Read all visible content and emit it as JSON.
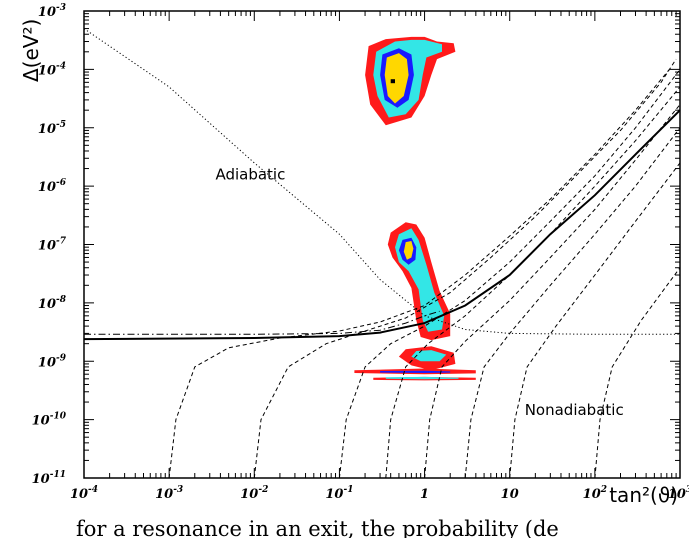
{
  "chart_data": {
    "type": "line",
    "xlabel": "tan²(ϑ)",
    "ylabel": "Δ(eV²)",
    "xscale": "log",
    "yscale": "log",
    "xlim": [
      0.0001,
      1000
    ],
    "ylim": [
      1e-11,
      0.001
    ],
    "xticks": [
      {
        "value": 0.0001,
        "base": "10",
        "exp": "-4"
      },
      {
        "value": 0.001,
        "base": "10",
        "exp": "-3"
      },
      {
        "value": 0.01,
        "base": "10",
        "exp": "-2"
      },
      {
        "value": 0.1,
        "base": "10",
        "exp": "-1"
      },
      {
        "value": 1,
        "base": "1",
        "exp": ""
      },
      {
        "value": 10,
        "base": "10",
        "exp": ""
      },
      {
        "value": 100,
        "base": "10",
        "exp": "2"
      },
      {
        "value": 1000,
        "base": "10",
        "exp": "3"
      }
    ],
    "yticks": [
      {
        "value": 1e-11,
        "base": "10",
        "exp": "-11"
      },
      {
        "value": 1e-10,
        "base": "10",
        "exp": "-10"
      },
      {
        "value": 1e-09,
        "base": "10",
        "exp": "-9"
      },
      {
        "value": 1e-08,
        "base": "10",
        "exp": "-8"
      },
      {
        "value": 1e-07,
        "base": "10",
        "exp": "-7"
      },
      {
        "value": 1e-06,
        "base": "10",
        "exp": "-6"
      },
      {
        "value": 1e-05,
        "base": "10",
        "exp": "-5"
      },
      {
        "value": 0.0001,
        "base": "10",
        "exp": "-4"
      },
      {
        "value": 0.001,
        "base": "10",
        "exp": "-3"
      }
    ],
    "annotations": [
      {
        "text": "Adiabatic",
        "x": 0.0035,
        "y": 1.3e-06
      },
      {
        "text": "Nonadiabatic",
        "x": 15,
        "y": 1.2e-10
      }
    ],
    "series": [
      {
        "style": "solid",
        "points": [
          [
            0.0001,
            2.4e-09
          ],
          [
            0.01,
            2.5e-09
          ],
          [
            0.1,
            2.7e-09
          ],
          [
            0.3,
            3.1e-09
          ],
          [
            1,
            4.5e-09
          ],
          [
            3,
            9e-09
          ],
          [
            10,
            3e-08
          ],
          [
            30,
            1.5e-07
          ],
          [
            100,
            7e-07
          ],
          [
            300,
            3.5e-06
          ],
          [
            1000,
            2e-05
          ]
        ]
      },
      {
        "style": "dash-dot",
        "points": [
          [
            0.0001,
            2.9e-09
          ],
          [
            0.01,
            2.9e-09
          ],
          [
            0.1,
            3e-09
          ],
          [
            0.3,
            3.4e-09
          ],
          [
            0.6,
            4.5e-09
          ],
          [
            1,
            6e-09
          ],
          [
            1.5,
            7.2e-09
          ]
        ]
      },
      {
        "style": "dotted",
        "points": [
          [
            0.0001,
            0.0005
          ],
          [
            0.001,
            5e-05
          ],
          [
            0.01,
            2.5e-06
          ],
          [
            0.1,
            1.5e-07
          ],
          [
            0.3,
            2.5e-08
          ],
          [
            1,
            6e-09
          ],
          [
            3,
            3.5e-09
          ],
          [
            10,
            3e-09
          ],
          [
            100,
            2.9e-09
          ],
          [
            1000,
            2.9e-09
          ]
        ]
      },
      {
        "style": "dashed",
        "points": [
          [
            0.001,
            1e-11
          ],
          [
            0.0012,
            1e-10
          ],
          [
            0.002,
            8e-10
          ],
          [
            0.005,
            1.7e-09
          ],
          [
            0.02,
            2.5e-09
          ],
          [
            0.1,
            3.3e-09
          ],
          [
            0.3,
            4.7e-09
          ],
          [
            1,
            9e-09
          ],
          [
            3,
            3e-08
          ],
          [
            10,
            1.4e-07
          ],
          [
            30,
            6e-07
          ],
          [
            100,
            3.5e-06
          ],
          [
            300,
            2e-05
          ],
          [
            750,
            0.0001
          ]
        ]
      },
      {
        "style": "dashed",
        "points": [
          [
            0.01,
            1e-11
          ],
          [
            0.012,
            1e-10
          ],
          [
            0.025,
            8e-10
          ],
          [
            0.07,
            2e-09
          ],
          [
            0.2,
            3.3e-09
          ],
          [
            0.6,
            5.5e-09
          ],
          [
            2,
            1.5e-08
          ],
          [
            6,
            6e-08
          ],
          [
            20,
            3e-07
          ],
          [
            60,
            1.5e-06
          ],
          [
            200,
            9e-06
          ],
          [
            600,
            6e-05
          ],
          [
            900,
            0.00015
          ]
        ]
      },
      {
        "style": "dashed",
        "points": [
          [
            0.1,
            1e-11
          ],
          [
            0.12,
            1e-10
          ],
          [
            0.2,
            8e-10
          ],
          [
            0.4,
            2e-09
          ],
          [
            1,
            4e-09
          ],
          [
            3,
            1.1e-08
          ],
          [
            10,
            5e-08
          ],
          [
            30,
            2.5e-07
          ],
          [
            100,
            1.5e-06
          ],
          [
            300,
            1e-05
          ],
          [
            1000,
            0.0001
          ]
        ]
      },
      {
        "style": "dashed",
        "points": [
          [
            0.35,
            1e-11
          ],
          [
            0.4,
            1e-10
          ],
          [
            0.6,
            8e-10
          ],
          [
            1.1,
            2e-09
          ],
          [
            3,
            6e-09
          ],
          [
            10,
            3e-08
          ],
          [
            30,
            1.5e-07
          ],
          [
            100,
            1e-06
          ],
          [
            300,
            6e-06
          ],
          [
            1000,
            5e-05
          ]
        ]
      },
      {
        "style": "dashed",
        "points": [
          [
            1,
            1e-11
          ],
          [
            1.15,
            1e-10
          ],
          [
            1.6,
            8e-10
          ],
          [
            3,
            2.2e-09
          ],
          [
            10,
            1.1e-08
          ],
          [
            30,
            6e-08
          ],
          [
            100,
            4e-07
          ],
          [
            300,
            2.8e-06
          ],
          [
            1000,
            2.5e-05
          ]
        ]
      },
      {
        "style": "dashed",
        "points": [
          [
            3,
            1e-11
          ],
          [
            3.5,
            1e-10
          ],
          [
            5,
            8e-10
          ],
          [
            10,
            3e-09
          ],
          [
            30,
            2e-08
          ],
          [
            100,
            1.5e-07
          ],
          [
            300,
            1e-06
          ],
          [
            1000,
            1e-05
          ]
        ]
      },
      {
        "style": "dashed",
        "points": [
          [
            10,
            1e-11
          ],
          [
            11.5,
            1e-10
          ],
          [
            16,
            8e-10
          ],
          [
            35,
            4e-09
          ],
          [
            100,
            3e-08
          ],
          [
            300,
            2.5e-07
          ],
          [
            1000,
            2.5e-06
          ]
        ]
      },
      {
        "style": "dashed",
        "points": [
          [
            100,
            1e-11
          ],
          [
            115,
            1e-10
          ],
          [
            160,
            8e-10
          ],
          [
            350,
            5e-09
          ],
          [
            1000,
            4e-08
          ]
        ]
      }
    ],
    "regions": [
      {
        "color": "#ff1a1a",
        "points": [
          [
            0.22,
            0.00025
          ],
          [
            0.35,
            0.00033
          ],
          [
            0.7,
            0.00036
          ],
          [
            1,
            0.00036
          ],
          [
            1.4,
            0.0003
          ],
          [
            2.2,
            0.00028
          ],
          [
            2.3,
            0.0002
          ],
          [
            1.4,
            0.00015
          ],
          [
            1.2,
            8e-05
          ],
          [
            1,
            3.5e-05
          ],
          [
            0.7,
            1.5e-05
          ],
          [
            0.35,
            1.1e-05
          ],
          [
            0.23,
            2.5e-05
          ],
          [
            0.2,
            8e-05
          ]
        ]
      },
      {
        "color": "#33e6e6",
        "points": [
          [
            0.27,
            0.0002
          ],
          [
            0.45,
            0.0003
          ],
          [
            0.7,
            0.00032
          ],
          [
            1,
            0.00032
          ],
          [
            1.6,
            0.00027
          ],
          [
            1.6,
            0.0002
          ],
          [
            1.05,
            0.00016
          ],
          [
            0.95,
            8e-05
          ],
          [
            0.85,
            3e-05
          ],
          [
            0.6,
            1.7e-05
          ],
          [
            0.38,
            1.5e-05
          ],
          [
            0.28,
            3.5e-05
          ],
          [
            0.25,
            8e-05
          ]
        ]
      },
      {
        "color": "#1a1aff",
        "points": [
          [
            0.32,
            0.00018
          ],
          [
            0.5,
            0.00023
          ],
          [
            0.7,
            0.00018
          ],
          [
            0.75,
            8e-05
          ],
          [
            0.65,
            3e-05
          ],
          [
            0.48,
            2.2e-05
          ],
          [
            0.34,
            3e-05
          ],
          [
            0.3,
            8e-05
          ]
        ]
      },
      {
        "color": "#ffd700",
        "points": [
          [
            0.36,
            0.00016
          ],
          [
            0.5,
            0.00019
          ],
          [
            0.62,
            0.00015
          ],
          [
            0.65,
            8e-05
          ],
          [
            0.57,
            3.5e-05
          ],
          [
            0.45,
            2.6e-05
          ],
          [
            0.37,
            3.5e-05
          ],
          [
            0.34,
            8e-05
          ]
        ]
      },
      {
        "color": "#000000",
        "points": [
          [
            0.4,
            6.8e-05
          ],
          [
            0.45,
            6.8e-05
          ],
          [
            0.45,
            5.8e-05
          ],
          [
            0.4,
            5.8e-05
          ]
        ]
      },
      {
        "color": "#ff1a1a",
        "points": [
          [
            0.4,
            1.6e-07
          ],
          [
            0.6,
            2.4e-07
          ],
          [
            0.8,
            2.2e-07
          ],
          [
            1,
            1.3e-07
          ],
          [
            1.2,
            5e-08
          ],
          [
            1.5,
            1.6e-08
          ],
          [
            2,
            6.5e-09
          ],
          [
            2,
            2.7e-09
          ],
          [
            1.2,
            2.3e-09
          ],
          [
            0.9,
            2.6e-09
          ],
          [
            0.8,
            5e-09
          ],
          [
            0.7,
            1.8e-08
          ],
          [
            0.55,
            3.5e-08
          ],
          [
            0.42,
            6e-08
          ],
          [
            0.37,
            1e-07
          ]
        ]
      },
      {
        "color": "#33e6e6",
        "points": [
          [
            0.5,
            1.5e-07
          ],
          [
            0.7,
            1.9e-07
          ],
          [
            0.85,
            1.2e-07
          ],
          [
            1.05,
            4.5e-08
          ],
          [
            1.3,
            1.5e-08
          ],
          [
            1.7,
            6e-09
          ],
          [
            1.6,
            3.5e-09
          ],
          [
            1.1,
            3.2e-09
          ],
          [
            0.95,
            5e-09
          ],
          [
            0.85,
            1.7e-08
          ],
          [
            0.65,
            3.5e-08
          ],
          [
            0.5,
            5e-08
          ],
          [
            0.45,
            9e-08
          ]
        ]
      },
      {
        "color": "#1a1aff",
        "points": [
          [
            0.55,
            1.2e-07
          ],
          [
            0.7,
            1.3e-07
          ],
          [
            0.8,
            9e-08
          ],
          [
            0.78,
            5.5e-08
          ],
          [
            0.65,
            4.5e-08
          ],
          [
            0.55,
            5.5e-08
          ],
          [
            0.5,
            8e-08
          ]
        ]
      },
      {
        "color": "#ffd700",
        "points": [
          [
            0.6,
            1.1e-07
          ],
          [
            0.7,
            1.15e-07
          ],
          [
            0.74,
            8.5e-08
          ],
          [
            0.7,
            6e-08
          ],
          [
            0.62,
            5.5e-08
          ],
          [
            0.57,
            7.5e-08
          ]
        ]
      },
      {
        "color": "#ff1a1a",
        "points": [
          [
            0.6,
            1.6e-09
          ],
          [
            1.2,
            1.8e-09
          ],
          [
            2.2,
            1.4e-09
          ],
          [
            2.3,
            9e-10
          ],
          [
            1.2,
            7e-10
          ],
          [
            0.7,
            8.5e-10
          ],
          [
            0.5,
            1.2e-09
          ]
        ]
      },
      {
        "color": "#33e6e6",
        "points": [
          [
            0.8,
            1.5e-09
          ],
          [
            1.2,
            1.55e-09
          ],
          [
            1.8,
            1.3e-09
          ],
          [
            1.5,
            1e-09
          ],
          [
            0.9,
            1e-09
          ],
          [
            0.7,
            1.2e-09
          ]
        ]
      },
      {
        "color": "#ff1a1a",
        "points": [
          [
            0.15,
            7e-10
          ],
          [
            1,
            7.5e-10
          ],
          [
            4,
            7e-10
          ],
          [
            4,
            6.2e-10
          ],
          [
            1,
            6e-10
          ],
          [
            0.15,
            6.3e-10
          ]
        ]
      },
      {
        "color": "#1a1aff",
        "points": [
          [
            0.3,
            6.8e-10
          ],
          [
            1,
            6.9e-10
          ],
          [
            2,
            6.7e-10
          ],
          [
            2,
            6.4e-10
          ],
          [
            1,
            6.3e-10
          ],
          [
            0.3,
            6.4e-10
          ]
        ]
      },
      {
        "color": "#ff1a1a",
        "points": [
          [
            0.25,
            5.2e-10
          ],
          [
            1,
            5.4e-10
          ],
          [
            4,
            5.2e-10
          ],
          [
            4,
            4.8e-10
          ],
          [
            1,
            4.7e-10
          ],
          [
            0.25,
            4.8e-10
          ]
        ]
      },
      {
        "color": "#33e6e6",
        "points": [
          [
            0.35,
            5.3e-10
          ],
          [
            1,
            5.4e-10
          ],
          [
            2.5,
            5.2e-10
          ],
          [
            2.5,
            5e-10
          ],
          [
            1,
            4.9e-10
          ],
          [
            0.35,
            5e-10
          ]
        ]
      }
    ]
  },
  "caption": "for a resonance in an exit, the probability (de"
}
